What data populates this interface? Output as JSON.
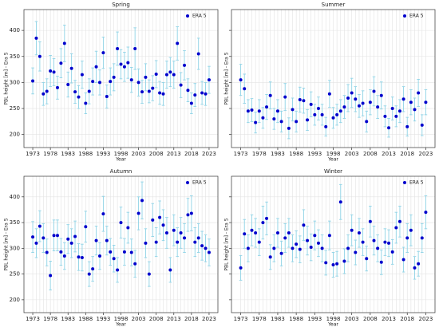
{
  "chart_data": [
    {
      "type": "scatter",
      "title": "Spring",
      "xlabel": "Year",
      "ylabel": "PBL height [m] - Era 5",
      "x": [
        1973,
        1974,
        1975,
        1976,
        1977,
        1978,
        1979,
        1980,
        1981,
        1982,
        1983,
        1984,
        1985,
        1986,
        1987,
        1988,
        1989,
        1990,
        1991,
        1992,
        1993,
        1994,
        1995,
        1996,
        1997,
        1998,
        1999,
        2000,
        2001,
        2002,
        2003,
        2004,
        2005,
        2006,
        2007,
        2008,
        2009,
        2010,
        2011,
        2012,
        2013,
        2014,
        2015,
        2016,
        2017,
        2018,
        2019,
        2020,
        2021,
        2022,
        2023
      ],
      "series": [
        {
          "name": "ERA 5",
          "color": "#0000cc",
          "values": [
            303,
            385,
            350,
            278,
            283,
            322,
            320,
            290,
            337,
            375,
            296,
            327,
            282,
            272,
            315,
            260,
            283,
            302,
            330,
            300,
            357,
            273,
            302,
            310,
            365,
            335,
            330,
            338,
            305,
            365,
            300,
            282,
            310,
            283,
            289,
            316,
            280,
            278,
            315,
            320,
            315,
            375,
            295,
            333,
            285,
            260,
            276,
            355,
            280,
            278,
            305
          ],
          "errors": [
            25,
            32,
            28,
            22,
            24,
            30,
            26,
            22,
            28,
            35,
            24,
            28,
            22,
            22,
            26,
            20,
            24,
            26,
            30,
            24,
            30,
            22,
            26,
            26,
            32,
            28,
            28,
            30,
            24,
            40,
            26,
            22,
            26,
            22,
            24,
            26,
            22,
            22,
            26,
            28,
            26,
            32,
            24,
            28,
            22,
            20,
            22,
            30,
            22,
            22,
            26
          ]
        }
      ],
      "xlim": [
        1970.5,
        2025.5
      ],
      "ylim": [
        175,
        440
      ],
      "xticks": [
        1973,
        1978,
        1983,
        1988,
        1993,
        1998,
        2003,
        2008,
        2013,
        2018,
        2023
      ],
      "yticks": [
        200,
        250,
        300,
        350,
        400
      ],
      "grid": true,
      "legend": "upper right"
    },
    {
      "type": "scatter",
      "title": "Summer",
      "xlabel": "Year",
      "ylabel": "PBL height [m] - Era 5",
      "x": [
        1973,
        1974,
        1975,
        1976,
        1977,
        1978,
        1979,
        1980,
        1981,
        1982,
        1983,
        1984,
        1985,
        1986,
        1987,
        1988,
        1989,
        1990,
        1991,
        1992,
        1993,
        1994,
        1995,
        1996,
        1997,
        1998,
        1999,
        2000,
        2001,
        2002,
        2003,
        2004,
        2005,
        2006,
        2007,
        2008,
        2009,
        2010,
        2011,
        2012,
        2013,
        2014,
        2015,
        2016,
        2017,
        2018,
        2019,
        2020,
        2021,
        2022,
        2023
      ],
      "series": [
        {
          "name": "ERA 5",
          "color": "#0000cc",
          "values": [
            305,
            288,
            245,
            247,
            223,
            245,
            232,
            253,
            275,
            230,
            245,
            225,
            272,
            212,
            248,
            225,
            267,
            265,
            228,
            258,
            238,
            250,
            238,
            215,
            278,
            232,
            238,
            245,
            253,
            270,
            280,
            268,
            255,
            260,
            225,
            262,
            283,
            253,
            275,
            235,
            213,
            250,
            235,
            245,
            268,
            215,
            262,
            248,
            280,
            218,
            262
          ],
          "errors": [
            30,
            28,
            22,
            22,
            20,
            22,
            20,
            24,
            26,
            20,
            22,
            20,
            26,
            20,
            22,
            20,
            24,
            24,
            20,
            24,
            20,
            22,
            20,
            18,
            26,
            20,
            20,
            22,
            22,
            26,
            28,
            24,
            22,
            24,
            20,
            24,
            28,
            22,
            26,
            20,
            18,
            22,
            20,
            22,
            24,
            18,
            24,
            22,
            26,
            20,
            24
          ]
        }
      ],
      "xlim": [
        1970.5,
        2025.5
      ],
      "ylim": [
        175,
        440
      ],
      "xticks": [
        1973,
        1978,
        1983,
        1988,
        1993,
        1998,
        2003,
        2008,
        2013,
        2018,
        2023
      ],
      "yticks": [
        200,
        250,
        300,
        350,
        400
      ],
      "grid": true,
      "legend": "upper right"
    },
    {
      "type": "scatter",
      "title": "Autumn",
      "xlabel": "Year",
      "ylabel": "PBL height [m] - Era 5",
      "x": [
        1973,
        1974,
        1975,
        1976,
        1977,
        1978,
        1979,
        1980,
        1981,
        1982,
        1983,
        1984,
        1985,
        1986,
        1987,
        1988,
        1989,
        1990,
        1991,
        1992,
        1993,
        1994,
        1995,
        1996,
        1997,
        1998,
        1999,
        2000,
        2001,
        2002,
        2003,
        2004,
        2005,
        2006,
        2007,
        2008,
        2009,
        2010,
        2011,
        2012,
        2013,
        2014,
        2015,
        2016,
        2017,
        2018,
        2019,
        2020,
        2021,
        2022,
        2023
      ],
      "series": [
        {
          "name": "ERA 5",
          "color": "#0000cc",
          "values": [
            322,
            310,
            343,
            320,
            292,
            247,
            325,
            325,
            293,
            285,
            318,
            310,
            323,
            283,
            282,
            342,
            250,
            260,
            315,
            285,
            367,
            315,
            293,
            280,
            258,
            350,
            293,
            340,
            292,
            270,
            368,
            393,
            310,
            250,
            355,
            312,
            360,
            345,
            330,
            258,
            335,
            312,
            330,
            320,
            365,
            368,
            312,
            320,
            305,
            300,
            292
          ],
          "errors": [
            30,
            28,
            30,
            28,
            26,
            28,
            30,
            30,
            26,
            26,
            28,
            28,
            30,
            26,
            26,
            30,
            24,
            24,
            28,
            26,
            34,
            28,
            26,
            26,
            24,
            30,
            26,
            30,
            26,
            26,
            32,
            36,
            28,
            24,
            32,
            28,
            32,
            30,
            30,
            24,
            30,
            28,
            30,
            28,
            32,
            34,
            28,
            28,
            28,
            26,
            26
          ]
        }
      ],
      "xlim": [
        1970.5,
        2025.5
      ],
      "ylim": [
        175,
        440
      ],
      "xticks": [
        1973,
        1978,
        1983,
        1988,
        1993,
        1998,
        2003,
        2008,
        2013,
        2018,
        2023
      ],
      "yticks": [
        200,
        250,
        300,
        350,
        400
      ],
      "grid": true,
      "legend": "upper right"
    },
    {
      "type": "scatter",
      "title": "Winter",
      "xlabel": "Year",
      "ylabel": "PBL height [m] - Era 5",
      "x": [
        1973,
        1974,
        1975,
        1976,
        1977,
        1978,
        1979,
        1980,
        1981,
        1982,
        1983,
        1984,
        1985,
        1986,
        1987,
        1988,
        1989,
        1990,
        1991,
        1992,
        1993,
        1994,
        1995,
        1996,
        1997,
        1998,
        1999,
        2000,
        2001,
        2002,
        2003,
        2004,
        2005,
        2006,
        2007,
        2008,
        2009,
        2010,
        2011,
        2012,
        2013,
        2014,
        2015,
        2016,
        2017,
        2018,
        2019,
        2020,
        2021,
        2022,
        2023
      ],
      "series": [
        {
          "name": "ERA 5",
          "color": "#0000cc",
          "values": [
            262,
            328,
            300,
            335,
            330,
            312,
            350,
            358,
            283,
            300,
            330,
            290,
            320,
            330,
            300,
            308,
            298,
            345,
            315,
            302,
            325,
            310,
            300,
            272,
            325,
            268,
            270,
            390,
            275,
            300,
            335,
            292,
            330,
            312,
            280,
            352,
            315,
            300,
            273,
            312,
            310,
            293,
            340,
            352,
            278,
            320,
            335,
            262,
            270,
            320,
            370
          ],
          "errors": [
            24,
            28,
            26,
            30,
            28,
            26,
            32,
            32,
            24,
            26,
            28,
            24,
            28,
            28,
            26,
            26,
            26,
            30,
            28,
            26,
            28,
            26,
            26,
            24,
            28,
            24,
            24,
            34,
            24,
            26,
            30,
            24,
            28,
            26,
            24,
            30,
            28,
            26,
            24,
            26,
            26,
            24,
            30,
            30,
            24,
            28,
            30,
            22,
            24,
            28,
            32
          ]
        }
      ],
      "xlim": [
        1970.5,
        2025.5
      ],
      "ylim": [
        175,
        440
      ],
      "xticks": [
        1973,
        1978,
        1983,
        1988,
        1993,
        1998,
        2003,
        2008,
        2013,
        2018,
        2023
      ],
      "yticks": [
        200,
        250,
        300,
        350,
        400
      ],
      "grid": true,
      "legend": "upper right"
    }
  ]
}
